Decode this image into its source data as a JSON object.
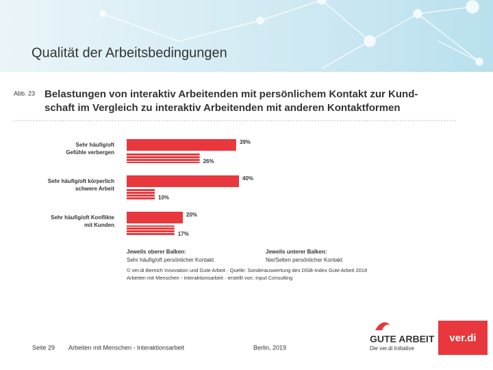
{
  "header": {
    "title": "Qualität der Arbeitsbedingungen"
  },
  "figure": {
    "label": "Abb. 23",
    "title_lines": [
      "Belastungen von interaktiv Arbeitenden mit persönlichem Kontakt zur Kund-",
      "schaft im Vergleich zu interaktiv  Arbeitenden mit anderen Kontaktformen"
    ]
  },
  "chart_data": {
    "type": "bar",
    "orientation": "horizontal",
    "categories": [
      [
        "Sehr häufig/oft",
        "Gefühle verbergen"
      ],
      [
        "Sehr häufig/oft körperlich",
        "schwere Arbeit"
      ],
      [
        "Sehr häufig/oft Konflikte",
        "mit Kunden"
      ]
    ],
    "series": [
      {
        "name": "Sehr häufig/oft persönlicher Kontakt",
        "legend_heading": "Jeweils oberer Balken:",
        "color": "#e8383d",
        "values": [
          39,
          40,
          20
        ],
        "value_labels": [
          "39%",
          "40%",
          "20%"
        ]
      },
      {
        "name": "Nie/Selten persönlicher Kontakt",
        "legend_heading": "Jeweils unterer Balken:",
        "color": "#e8383d",
        "values": [
          26,
          10,
          17
        ],
        "value_labels": [
          "26%",
          "10%",
          "17%"
        ]
      }
    ],
    "source": [
      "© ver.di Bereich Innovation und Gute Arbeit · Quelle: Sonderauswertung des DGB-Index Gute Arbeit 2018",
      "Arbeiten mit Menschen - Interaktionsarbeit · erstellt von: Input Consulting"
    ]
  },
  "footer": {
    "page": "Seite 29",
    "topic": "Arbeiten mit Menschen - Interaktionsarbeit",
    "place_date": "Berlin, 2019"
  },
  "logos": {
    "gute_arbeit": "GUTE ARBEIT",
    "initiative": "Die ver.di Initiative",
    "verdi": "ver.di"
  }
}
